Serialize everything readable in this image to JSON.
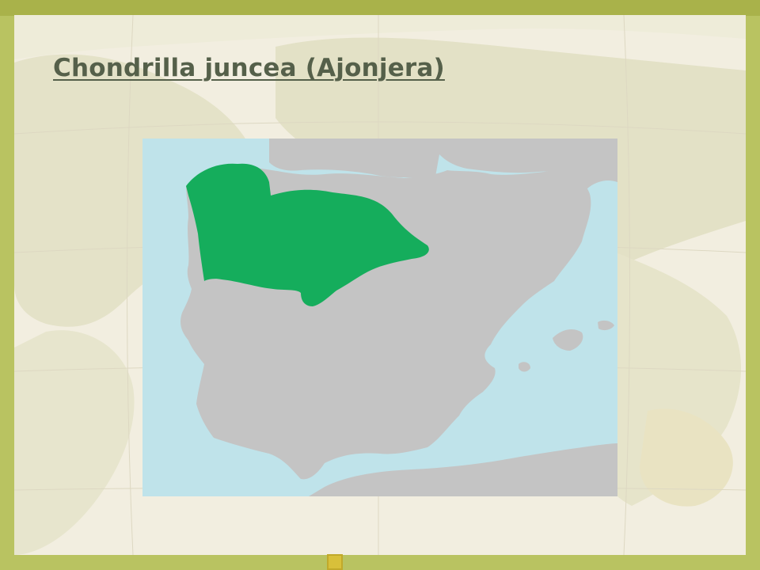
{
  "slide": {
    "title": "Chondrilla juncea (Ajonjera)"
  },
  "map": {
    "region": "Iberian Peninsula",
    "distribution_color": "#15ad5c",
    "land_color": "#c4c4c4",
    "sea_color": "#bfe3ea"
  },
  "background": {
    "type": "faded world map",
    "frame_color": "#b9c361"
  }
}
